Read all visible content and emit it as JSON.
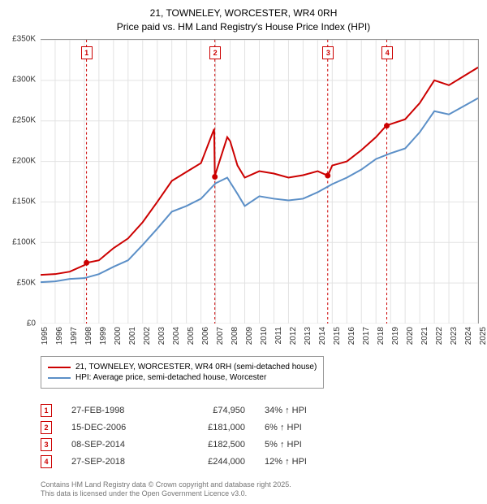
{
  "title": {
    "line1": "21, TOWNELEY, WORCESTER, WR4 0RH",
    "line2": "Price paid vs. HM Land Registry's House Price Index (HPI)"
  },
  "chart": {
    "type": "line",
    "background_color": "#ffffff",
    "grid_color": "#e2e2e2",
    "axis_color": "#999999",
    "font_size_axis": 10,
    "xlim": [
      1995,
      2025
    ],
    "ylim": [
      0,
      350000
    ],
    "x_ticks": [
      1995,
      1996,
      1997,
      1998,
      1999,
      2000,
      2001,
      2002,
      2003,
      2004,
      2005,
      2006,
      2007,
      2008,
      2009,
      2010,
      2011,
      2012,
      2013,
      2014,
      2015,
      2016,
      2017,
      2018,
      2019,
      2020,
      2021,
      2022,
      2023,
      2024,
      2025
    ],
    "y_ticks": [
      0,
      50000,
      100000,
      150000,
      200000,
      250000,
      300000,
      350000
    ],
    "y_tick_labels": [
      "£0",
      "£50K",
      "£100K",
      "£150K",
      "£200K",
      "£250K",
      "£300K",
      "£350K"
    ],
    "series": [
      {
        "name": "price_paid",
        "label": "21, TOWNELEY, WORCESTER, WR4 0RH (semi-detached house)",
        "color": "#cc0000",
        "line_width": 2.0,
        "x": [
          1995.0,
          1996.0,
          1997.0,
          1998.0,
          1998.15,
          1999.0,
          2000.0,
          2001.0,
          2002.0,
          2003.0,
          2004.0,
          2005.0,
          2006.0,
          2006.9,
          2006.95,
          2007.0,
          2007.8,
          2008.0,
          2008.5,
          2009.0,
          2010.0,
          2011.0,
          2012.0,
          2013.0,
          2014.0,
          2014.7,
          2015.0,
          2016.0,
          2017.0,
          2018.0,
          2018.7,
          2019.0,
          2020.0,
          2021.0,
          2022.0,
          2023.0,
          2024.0,
          2025.0
        ],
        "y": [
          60000,
          61000,
          64000,
          72000,
          74950,
          78000,
          93000,
          105000,
          125000,
          150000,
          176000,
          187000,
          198000,
          240000,
          181000,
          185000,
          230000,
          225000,
          195000,
          180000,
          188000,
          185000,
          180000,
          183000,
          188000,
          182500,
          195000,
          200000,
          214000,
          230000,
          244000,
          246000,
          252000,
          272000,
          300000,
          294000,
          305000,
          316000
        ]
      },
      {
        "name": "hpi",
        "label": "HPI: Average price, semi-detached house, Worcester",
        "color": "#5b8fc7",
        "line_width": 2.0,
        "x": [
          1995.0,
          1996.0,
          1997.0,
          1998.0,
          1999.0,
          2000.0,
          2001.0,
          2002.0,
          2003.0,
          2004.0,
          2005.0,
          2006.0,
          2007.0,
          2007.8,
          2008.5,
          2009.0,
          2010.0,
          2011.0,
          2012.0,
          2013.0,
          2014.0,
          2015.0,
          2016.0,
          2017.0,
          2018.0,
          2019.0,
          2020.0,
          2021.0,
          2022.0,
          2023.0,
          2024.0,
          2025.0
        ],
        "y": [
          51000,
          52000,
          55000,
          56000,
          61000,
          70000,
          78000,
          97000,
          117000,
          138000,
          145000,
          154000,
          173000,
          180000,
          160000,
          145000,
          157000,
          154000,
          152000,
          154000,
          162000,
          172000,
          180000,
          190000,
          203000,
          210000,
          216000,
          236000,
          262000,
          258000,
          268000,
          278000
        ]
      }
    ],
    "sale_markers": [
      {
        "num": "1",
        "year": 1998.15,
        "price": 74950
      },
      {
        "num": "2",
        "year": 2006.95,
        "price": 181000
      },
      {
        "num": "3",
        "year": 2014.69,
        "price": 182500
      },
      {
        "num": "4",
        "year": 2018.74,
        "price": 244000
      }
    ],
    "marker_line_color": "#cc0000",
    "marker_line_dash": "3,3",
    "marker_dot_radius": 3.5
  },
  "legend": {
    "items": [
      {
        "color": "#cc0000",
        "label": "21, TOWNELEY, WORCESTER, WR4 0RH (semi-detached house)"
      },
      {
        "color": "#5b8fc7",
        "label": "HPI: Average price, semi-detached house, Worcester"
      }
    ]
  },
  "sales_table": {
    "rows": [
      {
        "num": "1",
        "date": "27-FEB-1998",
        "price": "£74,950",
        "pct": "34% ↑ HPI"
      },
      {
        "num": "2",
        "date": "15-DEC-2006",
        "price": "£181,000",
        "pct": "6% ↑ HPI"
      },
      {
        "num": "3",
        "date": "08-SEP-2014",
        "price": "£182,500",
        "pct": "5% ↑ HPI"
      },
      {
        "num": "4",
        "date": "27-SEP-2018",
        "price": "£244,000",
        "pct": "12% ↑ HPI"
      }
    ]
  },
  "footer": {
    "line1": "Contains HM Land Registry data © Crown copyright and database right 2025.",
    "line2": "This data is licensed under the Open Government Licence v3.0."
  }
}
